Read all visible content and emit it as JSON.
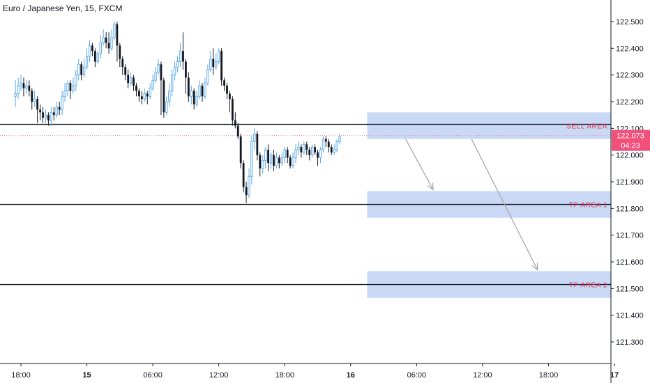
{
  "header": {
    "title": "Euro / Japanese Yen, 15, FXCM"
  },
  "colors": {
    "up_candle": "#5aa8e6",
    "down_candle": "#131722",
    "zone_fill": "#c9d9f5",
    "zone_label": "#e0365a",
    "price_tag": "#f0507a",
    "last_price_line": "#f28aa0",
    "arrow": "#a8a8a8",
    "axis_line": "#c8c8c8"
  },
  "price_tag": {
    "price": "122.073",
    "countdown": "04:23"
  },
  "chart_data": {
    "type": "candlestick",
    "timeframe": "15",
    "ylim": [
      121.24,
      122.56
    ],
    "y_ticks": [
      {
        "value": 122.5,
        "label": "122.500"
      },
      {
        "value": 122.4,
        "label": "122.400"
      },
      {
        "value": 122.3,
        "label": "122.300"
      },
      {
        "value": 122.2,
        "label": "122.200"
      },
      {
        "value": 122.1,
        "label": "122.100"
      },
      {
        "value": 122.0,
        "label": "122.000"
      },
      {
        "value": 121.9,
        "label": "121.900"
      },
      {
        "value": 121.8,
        "label": "121.800"
      },
      {
        "value": 121.7,
        "label": "121.700"
      },
      {
        "value": 121.6,
        "label": "121.600"
      },
      {
        "value": 121.5,
        "label": "121.500"
      },
      {
        "value": 121.4,
        "label": "121.400"
      },
      {
        "value": 121.3,
        "label": "121.300"
      }
    ],
    "x_ticks": [
      {
        "bar": 2,
        "label": "18:00",
        "bold": false
      },
      {
        "bar": 26,
        "label": "15",
        "bold": true
      },
      {
        "bar": 50,
        "label": "06:00",
        "bold": false
      },
      {
        "bar": 74,
        "label": "12:00",
        "bold": false
      },
      {
        "bar": 98,
        "label": "18:00",
        "bold": false
      },
      {
        "bar": 122,
        "label": "16",
        "bold": true
      },
      {
        "bar": 146,
        "label": "06:00",
        "bold": false
      },
      {
        "bar": 170,
        "label": "12:00",
        "bold": false
      },
      {
        "bar": 194,
        "label": "18:00",
        "bold": false
      },
      {
        "bar": 218,
        "label": "17",
        "bold": true
      }
    ],
    "horizontal_lines": [
      122.115,
      121.815,
      121.515
    ],
    "last_price": 122.073,
    "zones": [
      {
        "label": "SELL AREA",
        "top": 122.16,
        "bottom": 122.06,
        "from_bar": 128
      },
      {
        "label": "TP AREA 1",
        "top": 121.865,
        "bottom": 121.765,
        "from_bar": 128
      },
      {
        "label": "TP AREA 2",
        "top": 121.565,
        "bottom": 121.465,
        "from_bar": 128
      }
    ],
    "arrows": [
      {
        "from": [
          142,
          122.06
        ],
        "to": [
          152,
          121.87
        ]
      },
      {
        "from": [
          166,
          122.06
        ],
        "to": [
          190,
          121.57
        ]
      }
    ],
    "candles": [
      [
        122.22,
        122.23,
        122.28,
        122.18
      ],
      [
        122.23,
        122.26,
        122.29,
        122.21
      ],
      [
        122.26,
        122.27,
        122.3,
        122.24
      ],
      [
        122.27,
        122.25,
        122.29,
        122.22
      ],
      [
        122.25,
        122.26,
        122.28,
        122.23
      ],
      [
        122.26,
        122.24,
        122.28,
        122.22
      ],
      [
        122.24,
        122.2,
        122.25,
        122.17
      ],
      [
        122.2,
        122.21,
        122.24,
        122.18
      ],
      [
        122.21,
        122.17,
        122.22,
        122.12
      ],
      [
        122.17,
        122.16,
        122.19,
        122.13
      ],
      [
        122.16,
        122.14,
        122.18,
        122.12
      ],
      [
        122.14,
        122.15,
        122.17,
        122.12
      ],
      [
        122.15,
        122.13,
        122.16,
        122.11
      ],
      [
        122.13,
        122.16,
        122.18,
        122.11
      ],
      [
        122.16,
        122.15,
        122.18,
        122.13
      ],
      [
        122.15,
        122.18,
        122.2,
        122.14
      ],
      [
        122.18,
        122.17,
        122.2,
        122.15
      ],
      [
        122.17,
        122.22,
        122.24,
        122.15
      ],
      [
        122.22,
        122.24,
        122.27,
        122.2
      ],
      [
        122.24,
        122.27,
        122.28,
        122.22
      ],
      [
        122.27,
        122.24,
        122.28,
        122.21
      ],
      [
        122.24,
        122.26,
        122.29,
        122.23
      ],
      [
        122.26,
        122.3,
        122.32,
        122.24
      ],
      [
        122.3,
        122.34,
        122.36,
        122.28
      ],
      [
        122.34,
        122.3,
        122.35,
        122.28
      ],
      [
        122.3,
        122.33,
        122.36,
        122.29
      ],
      [
        122.33,
        122.37,
        122.4,
        122.32
      ],
      [
        122.37,
        122.41,
        122.43,
        122.35
      ],
      [
        122.41,
        122.39,
        122.42,
        122.37
      ],
      [
        122.39,
        122.35,
        122.4,
        122.33
      ],
      [
        122.35,
        122.38,
        122.39,
        122.34
      ],
      [
        122.38,
        122.42,
        122.45,
        122.36
      ],
      [
        122.42,
        122.44,
        122.47,
        122.41
      ],
      [
        122.44,
        122.42,
        122.46,
        122.4
      ],
      [
        122.42,
        122.4,
        122.46,
        122.38
      ],
      [
        122.4,
        122.44,
        122.47,
        122.39
      ],
      [
        122.44,
        122.49,
        122.5,
        122.43
      ],
      [
        122.49,
        122.41,
        122.5,
        122.35
      ],
      [
        122.41,
        122.36,
        122.42,
        122.33
      ],
      [
        122.36,
        122.33,
        122.37,
        122.3
      ],
      [
        122.33,
        122.3,
        122.34,
        122.28
      ],
      [
        122.3,
        122.27,
        122.32,
        122.25
      ],
      [
        122.27,
        122.29,
        122.31,
        122.26
      ],
      [
        122.29,
        122.26,
        122.3,
        122.24
      ],
      [
        122.26,
        122.24,
        122.27,
        122.22
      ],
      [
        122.24,
        122.22,
        122.25,
        122.2
      ],
      [
        122.22,
        122.21,
        122.24,
        122.19
      ],
      [
        122.21,
        122.23,
        122.25,
        122.2
      ],
      [
        122.23,
        122.22,
        122.24,
        122.19
      ],
      [
        122.22,
        122.25,
        122.27,
        122.21
      ],
      [
        122.25,
        122.28,
        122.3,
        122.24
      ],
      [
        122.28,
        122.31,
        122.33,
        122.27
      ],
      [
        122.31,
        122.34,
        122.36,
        122.3
      ],
      [
        122.34,
        122.28,
        122.35,
        122.15
      ],
      [
        122.28,
        122.16,
        122.29,
        122.14
      ],
      [
        122.16,
        122.2,
        122.22,
        122.15
      ],
      [
        122.2,
        122.24,
        122.27,
        122.18
      ],
      [
        122.24,
        122.3,
        122.32,
        122.22
      ],
      [
        122.3,
        122.33,
        122.35,
        122.28
      ],
      [
        122.33,
        122.35,
        122.37,
        122.31
      ],
      [
        122.35,
        122.39,
        122.42,
        122.33
      ],
      [
        122.39,
        122.35,
        122.46,
        122.32
      ],
      [
        122.35,
        122.29,
        122.36,
        122.23
      ],
      [
        122.29,
        122.22,
        122.31,
        122.2
      ],
      [
        122.22,
        122.24,
        122.26,
        122.19
      ],
      [
        122.24,
        122.19,
        122.25,
        122.17
      ],
      [
        122.19,
        122.22,
        122.24,
        122.18
      ],
      [
        122.22,
        122.26,
        122.28,
        122.21
      ],
      [
        122.26,
        122.22,
        122.27,
        122.2
      ],
      [
        122.22,
        122.27,
        122.29,
        122.21
      ],
      [
        122.27,
        122.32,
        122.34,
        122.26
      ],
      [
        122.32,
        122.36,
        122.39,
        122.31
      ],
      [
        122.36,
        122.33,
        122.4,
        122.3
      ],
      [
        122.33,
        122.35,
        122.38,
        122.32
      ],
      [
        122.35,
        122.39,
        122.4,
        122.34
      ],
      [
        122.39,
        122.28,
        122.4,
        122.26
      ],
      [
        122.28,
        122.26,
        122.29,
        122.24
      ],
      [
        122.26,
        122.23,
        122.27,
        122.21
      ],
      [
        122.23,
        122.21,
        122.24,
        122.16
      ],
      [
        122.21,
        122.13,
        122.22,
        122.11
      ],
      [
        122.13,
        122.11,
        122.16,
        122.1
      ],
      [
        122.11,
        122.07,
        122.12,
        122.06
      ],
      [
        122.07,
        121.97,
        122.08,
        121.95
      ],
      [
        121.97,
        121.88,
        121.98,
        121.86
      ],
      [
        121.88,
        121.85,
        121.9,
        121.82
      ],
      [
        121.85,
        121.92,
        121.95,
        121.84
      ],
      [
        121.92,
        122.05,
        122.07,
        121.89
      ],
      [
        122.05,
        122.08,
        122.1,
        122.02
      ],
      [
        122.08,
        122.0,
        122.09,
        121.98
      ],
      [
        122.0,
        121.95,
        122.01,
        121.92
      ],
      [
        121.95,
        121.98,
        122.0,
        121.93
      ],
      [
        121.98,
        122.02,
        122.03,
        121.95
      ],
      [
        122.02,
        121.97,
        122.04,
        121.94
      ],
      [
        121.97,
        122.0,
        122.01,
        121.95
      ],
      [
        122.0,
        121.96,
        122.02,
        121.94
      ],
      [
        121.96,
        121.99,
        122.01,
        121.95
      ],
      [
        121.99,
        121.97,
        122.0,
        121.95
      ],
      [
        121.97,
        121.99,
        122.01,
        121.96
      ],
      [
        121.99,
        122.02,
        122.03,
        121.97
      ],
      [
        122.02,
        121.99,
        122.03,
        121.97
      ],
      [
        121.99,
        121.96,
        122.0,
        121.95
      ],
      [
        121.96,
        121.99,
        122.01,
        121.95
      ],
      [
        121.99,
        122.02,
        122.04,
        121.97
      ],
      [
        122.02,
        122.03,
        122.05,
        122.0
      ],
      [
        122.03,
        122.01,
        122.04,
        121.99
      ],
      [
        122.01,
        122.04,
        122.05,
        122.0
      ],
      [
        122.04,
        122.02,
        122.05,
        122.0
      ],
      [
        122.02,
        122.0,
        122.03,
        121.98
      ],
      [
        122.0,
        122.03,
        122.04,
        121.99
      ],
      [
        122.03,
        122.01,
        122.04,
        122.0
      ],
      [
        122.01,
        121.99,
        122.02,
        121.96
      ],
      [
        121.99,
        122.02,
        122.03,
        121.97
      ],
      [
        122.02,
        122.06,
        122.07,
        122.01
      ],
      [
        122.06,
        122.05,
        122.07,
        122.03
      ],
      [
        122.05,
        122.03,
        122.06,
        122.01
      ],
      [
        122.03,
        122.01,
        122.04,
        122.0
      ],
      [
        122.01,
        122.02,
        122.04,
        122.0
      ],
      [
        122.02,
        122.05,
        122.06,
        122.01
      ],
      [
        122.05,
        122.07,
        122.08,
        122.04
      ]
    ]
  }
}
